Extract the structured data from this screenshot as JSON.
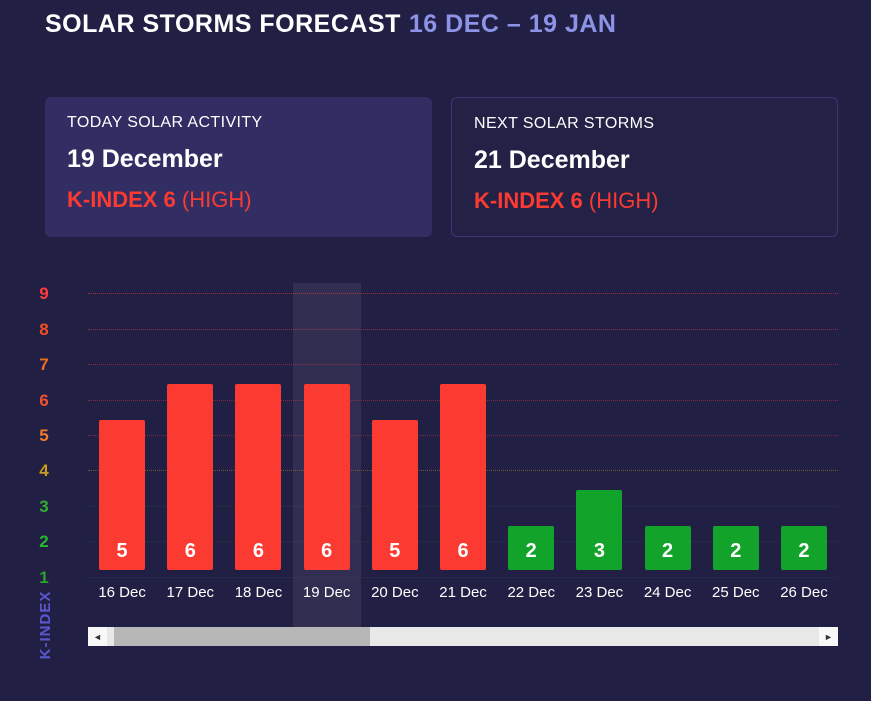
{
  "header": {
    "title": "SOLAR STORMS FORECAST",
    "range": "16 DEC – 19 JAN"
  },
  "cards": {
    "today": {
      "label": "TODAY SOLAR ACTIVITY",
      "date": "19 December",
      "kindex": "K-INDEX 6",
      "severity": "(HIGH)"
    },
    "next": {
      "label": "NEXT SOLAR STORMS",
      "date": "21 December",
      "kindex": "K-INDEX 6",
      "severity": "(HIGH)"
    }
  },
  "colors": {
    "background": "#221f45",
    "range_text": "#8d93e6",
    "alert_red": "#fb3a31",
    "bar_red": "#fb3a31",
    "bar_yellow": "#d3a018",
    "bar_green": "#12a32b",
    "axis_title": "#5a58d0",
    "today_card_bg": "#322d63"
  },
  "chart_data": {
    "type": "bar",
    "title": "Solar storms forecast K-index by day",
    "categories": [
      "16 Dec",
      "17 Dec",
      "18 Dec",
      "19 Dec",
      "20 Dec",
      "21 Dec",
      "22 Dec",
      "23 Dec",
      "24 Dec",
      "25 Dec",
      "26 Dec"
    ],
    "values": [
      5,
      6,
      6,
      6,
      5,
      6,
      2,
      3,
      2,
      2,
      2
    ],
    "xlabel": "",
    "ylabel": "K-INDEX",
    "ylim": [
      0,
      9
    ],
    "grid": true,
    "highlight_index": 3,
    "highlighted_category": "19 Dec",
    "color_rules": {
      "red_min": 5,
      "yellow_min": 4
    },
    "yticks": [
      {
        "level": 9,
        "color": "#ff3b3b"
      },
      {
        "level": 8,
        "color": "#f24e22"
      },
      {
        "level": 7,
        "color": "#ec6c1e"
      },
      {
        "level": 6,
        "color": "#f1522e"
      },
      {
        "level": 5,
        "color": "#ee7a28"
      },
      {
        "level": 4,
        "color": "#c89a1d"
      },
      {
        "level": 3,
        "color": "#2fae2f"
      },
      {
        "level": 2,
        "color": "#23bb2c"
      },
      {
        "level": 1,
        "color": "#27a32e"
      }
    ],
    "gridlines": [
      {
        "level": 9,
        "color": "rgba(255,64,64,0.55)"
      },
      {
        "level": 8,
        "color": "rgba(255,64,64,0.50)"
      },
      {
        "level": 7,
        "color": "rgba(255,64,64,0.45)"
      },
      {
        "level": 6,
        "color": "rgba(255,64,64,0.40)"
      },
      {
        "level": 5,
        "color": "rgba(255,64,64,0.40)"
      },
      {
        "level": 4,
        "color": "rgba(214,170,40,0.40)"
      },
      {
        "level": 3,
        "color": "rgba(60,180,60,0.15)"
      },
      {
        "level": 2,
        "color": "rgba(60,180,60,0.15)"
      },
      {
        "level": 1,
        "color": "rgba(60,180,60,0.15)"
      }
    ]
  },
  "scrollbar": {
    "left_arrow": "◄",
    "right_arrow": "►",
    "thumb_left_pct": 1,
    "thumb_width_pct": 36
  }
}
